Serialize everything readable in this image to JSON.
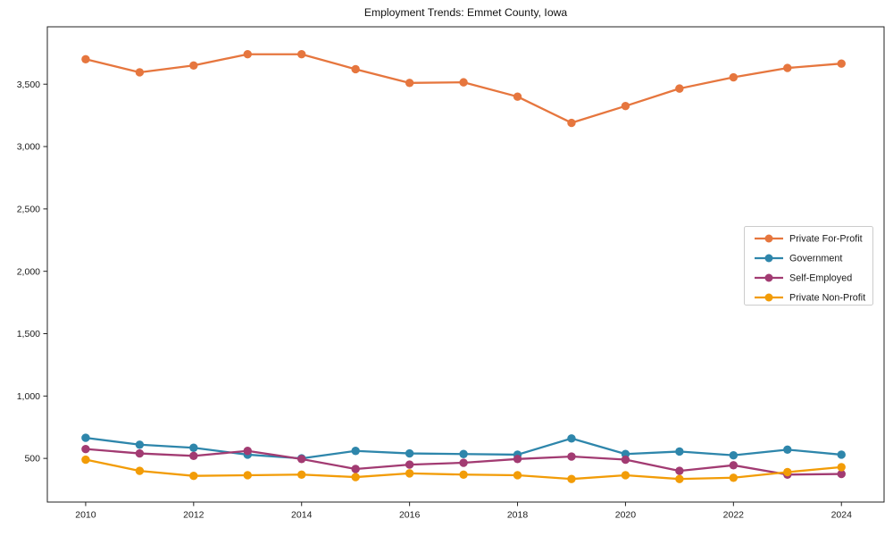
{
  "figure": {
    "title": "Employment Trends: Emmet County, Iowa"
  },
  "chart_data": {
    "type": "line",
    "title": "Employment Trends: Emmet County, Iowa",
    "xlabel": "",
    "ylabel": "",
    "grid": false,
    "legend_position": "right-middle",
    "x": [
      2010,
      2011,
      2012,
      2013,
      2014,
      2015,
      2016,
      2017,
      2018,
      2019,
      2020,
      2021,
      2022,
      2023,
      2024
    ],
    "x_tick_values": [
      2010,
      2012,
      2014,
      2016,
      2018,
      2020,
      2022,
      2024
    ],
    "x_tick_labels": [
      "2010",
      "2012",
      "2014",
      "2016",
      "2018",
      "2020",
      "2022",
      "2024"
    ],
    "y_tick_values": [
      500,
      1000,
      1500,
      2000,
      2500,
      3000,
      3500
    ],
    "y_tick_labels": [
      "500",
      "1,000",
      "1,500",
      "2,000",
      "2,500",
      "3,000",
      "3,500"
    ],
    "xlim": [
      2009.29,
      2024.79
    ],
    "ylim": [
      150,
      3960
    ],
    "series": [
      {
        "name": "Private For-Profit",
        "color": "#E6763E",
        "values": [
          3700,
          3595,
          3650,
          3740,
          3740,
          3620,
          3510,
          3515,
          3400,
          3190,
          3325,
          3465,
          3555,
          3630,
          3665
        ]
      },
      {
        "name": "Government",
        "color": "#2E86AB",
        "values": [
          665,
          610,
          585,
          530,
          500,
          560,
          540,
          535,
          530,
          660,
          535,
          555,
          525,
          570,
          530
        ]
      },
      {
        "name": "Self-Employed",
        "color": "#A23B72",
        "values": [
          575,
          540,
          520,
          560,
          495,
          415,
          450,
          465,
          495,
          515,
          490,
          400,
          445,
          370,
          375
        ]
      },
      {
        "name": "Private Non-Profit",
        "color": "#F29C07",
        "values": [
          490,
          400,
          360,
          365,
          370,
          350,
          380,
          370,
          365,
          335,
          365,
          335,
          345,
          390,
          430
        ]
      }
    ]
  }
}
